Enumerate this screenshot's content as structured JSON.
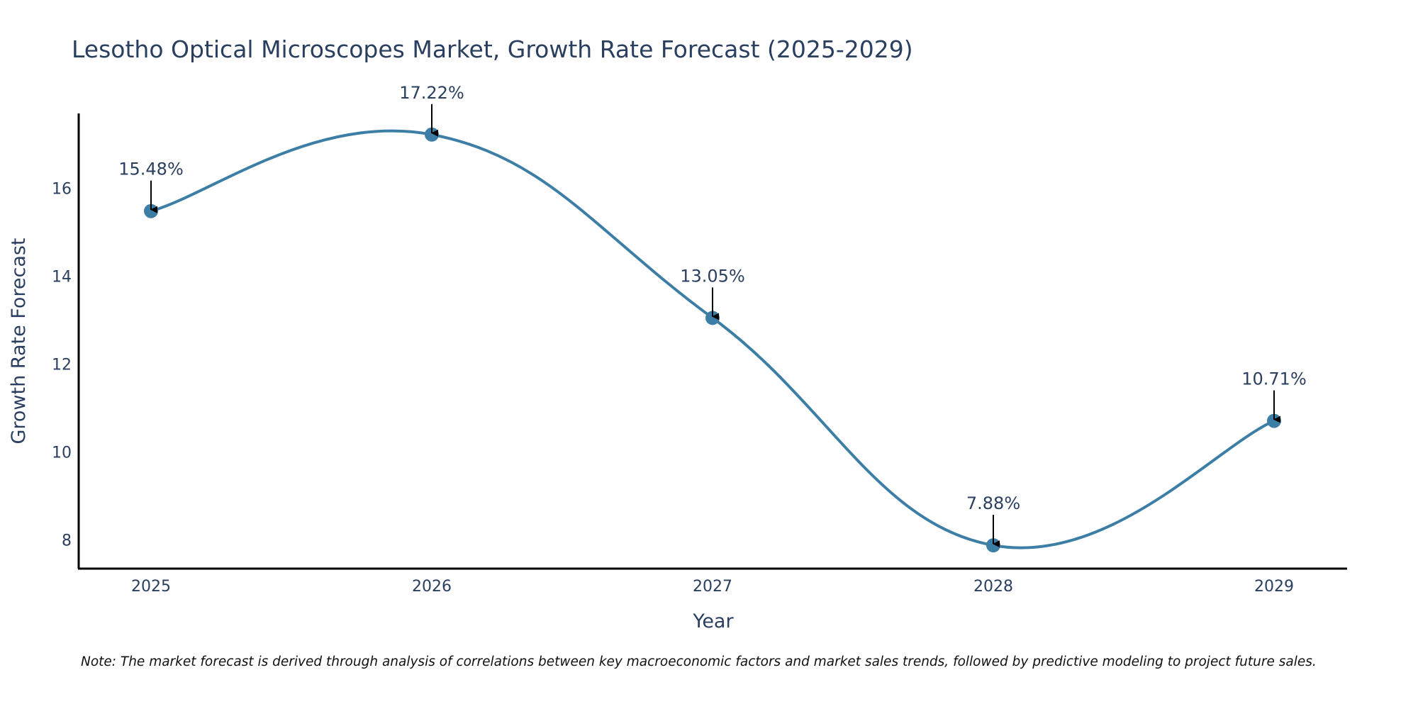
{
  "chart_data": {
    "type": "line",
    "title": "Lesotho Optical Microscopes Market, Growth Rate Forecast (2025-2029)",
    "xlabel": "Year",
    "ylabel": "Growth Rate Forecast",
    "categories": [
      "2025",
      "2026",
      "2027",
      "2028",
      "2029"
    ],
    "series": [
      {
        "name": "Growth Rate Forecast",
        "values": [
          15.48,
          17.22,
          13.05,
          7.88,
          10.71
        ],
        "labels": [
          "15.48%",
          "17.22%",
          "13.05%",
          "7.88%",
          "10.71%"
        ],
        "color": "#3d7ea6"
      }
    ],
    "yticks": [
      8,
      10,
      12,
      14,
      16
    ],
    "ylim": [
      7.35,
      17.7
    ],
    "grid": false,
    "note": "Note: The market forecast is derived through analysis of correlations between key macroeconomic factors and market sales trends, followed by predictive modeling to project future sales."
  },
  "colors": {
    "line": "#3d7ea6",
    "marker": "#3d7ea6",
    "axis": "#000000",
    "text": "#2a3f5f"
  }
}
